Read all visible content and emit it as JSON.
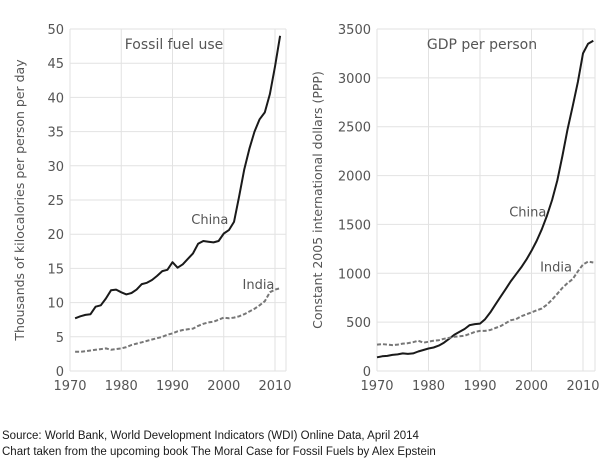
{
  "chart_data": [
    {
      "type": "line",
      "title": "Fossil fuel use",
      "xlabel": "",
      "ylabel": "Thousands of kilocalories per person per day",
      "xlim": [
        1970,
        2012
      ],
      "ylim": [
        0,
        50
      ],
      "xticks": [
        1970,
        1980,
        1990,
        2000,
        2010
      ],
      "yticks": [
        0,
        5,
        10,
        15,
        20,
        25,
        30,
        35,
        40,
        45,
        50
      ],
      "grid": true,
      "x": [
        1971,
        1972,
        1973,
        1974,
        1975,
        1976,
        1977,
        1978,
        1979,
        1980,
        1981,
        1982,
        1983,
        1984,
        1985,
        1986,
        1987,
        1988,
        1989,
        1990,
        1991,
        1992,
        1993,
        1994,
        1995,
        1996,
        1997,
        1998,
        1999,
        2000,
        2001,
        2002,
        2003,
        2004,
        2005,
        2006,
        2007,
        2008,
        2009,
        2010,
        2011
      ],
      "series": [
        {
          "name": "China",
          "style": "solid",
          "label_at": [
            1996,
            21.5
          ],
          "values": [
            7.7,
            8.0,
            8.2,
            8.3,
            9.4,
            9.6,
            10.6,
            11.8,
            11.9,
            11.5,
            11.2,
            11.4,
            11.9,
            12.7,
            12.9,
            13.3,
            13.9,
            14.6,
            14.8,
            15.9,
            15.1,
            15.6,
            16.4,
            17.2,
            18.6,
            19.0,
            18.9,
            18.8,
            19.0,
            20.1,
            20.6,
            21.8,
            25.5,
            29.5,
            32.5,
            35.0,
            36.8,
            37.8,
            40.5,
            44.5,
            49.0
          ]
        },
        {
          "name": "India",
          "style": "dashed",
          "label_at": [
            2006,
            12.0
          ],
          "values": [
            2.8,
            2.8,
            2.9,
            3.0,
            3.1,
            3.2,
            3.3,
            3.1,
            3.2,
            3.3,
            3.5,
            3.8,
            4.0,
            4.2,
            4.4,
            4.6,
            4.8,
            5.0,
            5.3,
            5.5,
            5.8,
            6.0,
            6.1,
            6.2,
            6.6,
            6.9,
            7.1,
            7.2,
            7.5,
            7.8,
            7.7,
            7.8,
            8.0,
            8.3,
            8.7,
            9.1,
            9.6,
            10.2,
            11.5,
            11.9,
            12.1
          ]
        }
      ]
    },
    {
      "type": "line",
      "title": "GDP per person",
      "xlabel": "",
      "ylabel": "Constant 2005 international dollars (PPP)",
      "xlim": [
        1970,
        2012
      ],
      "ylim": [
        0,
        3500
      ],
      "xticks": [
        1970,
        1980,
        1990,
        2000,
        2010
      ],
      "yticks": [
        0,
        500,
        1000,
        1500,
        2000,
        2500,
        3000,
        3500
      ],
      "grid": true,
      "x": [
        1970,
        1971,
        1972,
        1973,
        1974,
        1975,
        1976,
        1977,
        1978,
        1979,
        1980,
        1981,
        1982,
        1983,
        1984,
        1985,
        1986,
        1987,
        1988,
        1989,
        1990,
        1991,
        1992,
        1993,
        1994,
        1995,
        1996,
        1997,
        1998,
        1999,
        2000,
        2001,
        2002,
        2003,
        2004,
        2005,
        2006,
        2007,
        2008,
        2009,
        2010,
        2011,
        2012
      ],
      "series": [
        {
          "name": "China",
          "style": "solid",
          "label_at": [
            1998,
            1580
          ],
          "values": [
            140,
            150,
            155,
            165,
            170,
            180,
            175,
            180,
            200,
            215,
            230,
            240,
            260,
            290,
            330,
            370,
            400,
            430,
            470,
            480,
            485,
            530,
            600,
            680,
            760,
            840,
            920,
            990,
            1060,
            1140,
            1230,
            1330,
            1450,
            1590,
            1750,
            1950,
            2200,
            2470,
            2710,
            2960,
            3250,
            3350,
            3380
          ]
        },
        {
          "name": "India",
          "style": "dashed",
          "label_at": [
            2004,
            1020
          ],
          "values": [
            270,
            275,
            270,
            265,
            270,
            280,
            285,
            295,
            310,
            290,
            300,
            310,
            315,
            330,
            340,
            350,
            355,
            360,
            380,
            400,
            410,
            410,
            420,
            440,
            460,
            490,
            520,
            530,
            560,
            580,
            600,
            620,
            640,
            680,
            730,
            790,
            850,
            900,
            940,
            1020,
            1090,
            1120,
            1110
          ]
        }
      ]
    }
  ],
  "footer": {
    "source": "Source: World Bank, World Development Indicators (WDI) Online Data, April 2014",
    "credit": "Chart taken from the upcoming book The Moral Case for Fossil Fuels by Alex Epstein"
  }
}
